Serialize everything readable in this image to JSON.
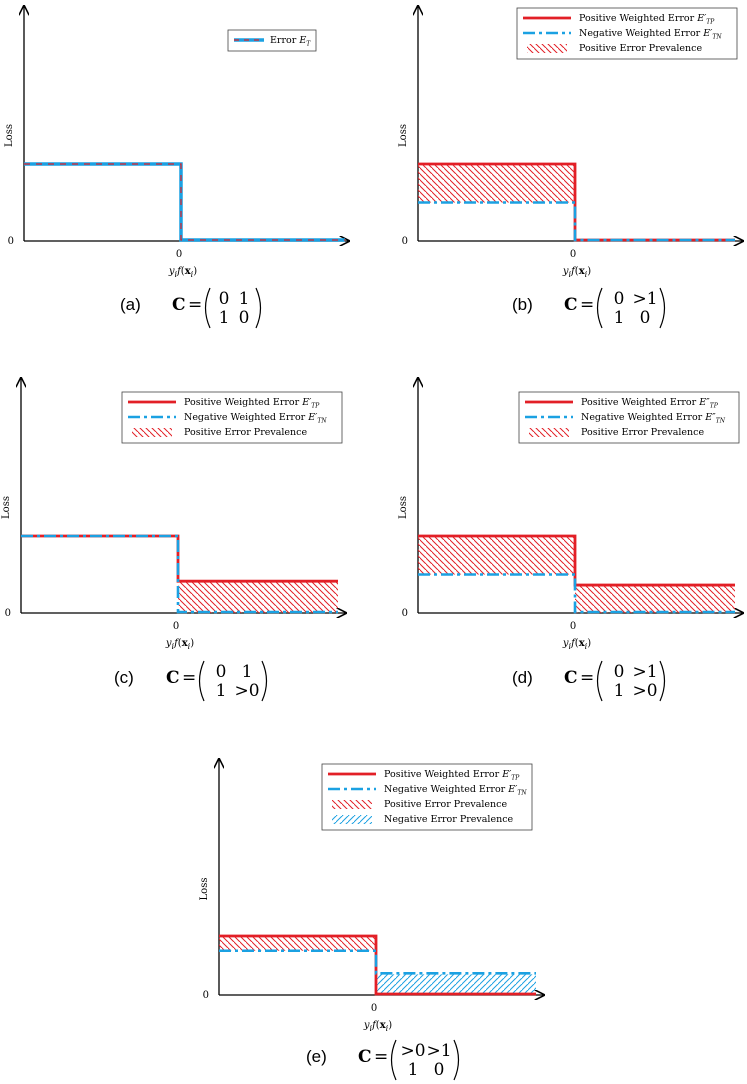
{
  "colors": {
    "positive": "#e21f26",
    "negative": "#1ba1e2",
    "axis": "#000000"
  },
  "axes": {
    "ylabel": "Loss",
    "xlabel": "y_i f(x_i)",
    "zero": "0"
  },
  "panels": [
    {
      "id": "a",
      "label": "(a)",
      "matrix": [
        [
          "0",
          "1"
        ],
        [
          "1",
          "0"
        ]
      ],
      "legend": [
        {
          "kind": "dashdot-combined",
          "text": "Error ",
          "sym": "E",
          "sub": "T"
        }
      ],
      "chart_data": {
        "type": "line",
        "series": [
          {
            "name": "Error E_T",
            "left": 1.0,
            "right": 0.0
          }
        ]
      }
    },
    {
      "id": "b",
      "label": "(b)",
      "matrix": [
        [
          "0",
          ">1"
        ],
        [
          "1",
          "0"
        ]
      ],
      "legend": [
        {
          "kind": "pos-line",
          "text": "Positive Weighted Error ",
          "sym": "E′",
          "sub": "TP"
        },
        {
          "kind": "neg-line",
          "text": "Negative Weighted Error ",
          "sym": "E′",
          "sub": "TN"
        },
        {
          "kind": "pos-hatch",
          "text": "Positive Error Prevalence"
        }
      ],
      "chart_data": {
        "type": "line",
        "series": [
          {
            "name": "Positive Weighted Error E′_TP",
            "left": 1.0,
            "right": 0.0
          },
          {
            "name": "Negative Weighted Error E′_TN",
            "left": 0.5,
            "right": 0.0
          }
        ]
      }
    },
    {
      "id": "c",
      "label": "(c)",
      "matrix": [
        [
          "0",
          "1"
        ],
        [
          "1",
          ">0"
        ]
      ],
      "legend": [
        {
          "kind": "pos-line",
          "text": "Positive Weighted Error ",
          "sym": "E′",
          "sub": "TP"
        },
        {
          "kind": "neg-line",
          "text": "Negative Weighted Error ",
          "sym": "E′",
          "sub": "TN"
        },
        {
          "kind": "pos-hatch",
          "text": "Positive Error Prevalence"
        }
      ],
      "chart_data": {
        "type": "line",
        "series": [
          {
            "name": "Positive Weighted Error E′_TP",
            "left": 1.0,
            "right": 0.4
          },
          {
            "name": "Negative Weighted Error E′_TN",
            "left": 1.0,
            "right": 0.0
          }
        ]
      }
    },
    {
      "id": "d",
      "label": "(d)",
      "matrix": [
        [
          "0",
          ">1"
        ],
        [
          "1",
          ">0"
        ]
      ],
      "legend": [
        {
          "kind": "pos-line",
          "text": "Positive Weighted Error ",
          "sym": "E″",
          "sub": "TP"
        },
        {
          "kind": "neg-line",
          "text": "Negative Weighted Error ",
          "sym": "E″",
          "sub": "TN"
        },
        {
          "kind": "pos-hatch",
          "text": "Positive Error Prevalence"
        }
      ],
      "chart_data": {
        "type": "line",
        "series": [
          {
            "name": "Positive Weighted Error E″_TP",
            "left": 1.0,
            "right": 0.35
          },
          {
            "name": "Negative Weighted Error E″_TN",
            "left": 0.5,
            "right": 0.0
          }
        ]
      }
    },
    {
      "id": "e",
      "label": "(e)",
      "matrix": [
        [
          ">0",
          ">1"
        ],
        [
          "1",
          "0"
        ]
      ],
      "legend": [
        {
          "kind": "pos-line",
          "text": "Positive Weighted Error ",
          "sym": "E′",
          "sub": "TP"
        },
        {
          "kind": "neg-line",
          "text": "Negative Weighted Error ",
          "sym": "E′",
          "sub": "TN"
        },
        {
          "kind": "pos-hatch",
          "text": "Positive Error Prevalence"
        },
        {
          "kind": "neg-hatch",
          "text": "Negative Error Prevalence"
        }
      ],
      "chart_data": {
        "type": "line",
        "series": [
          {
            "name": "Positive Weighted Error E′_TP",
            "left": 1.0,
            "right": 0.0
          },
          {
            "name": "Negative Weighted Error E′_TN",
            "left": 0.75,
            "right": 0.35
          }
        ]
      }
    }
  ]
}
